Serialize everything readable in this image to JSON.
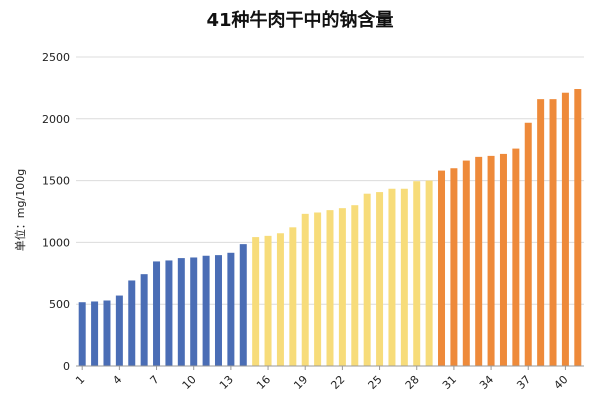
{
  "chart_data": {
    "type": "bar",
    "title": "41种牛肉干中的钠含量",
    "xlabel": "",
    "ylabel": "单位：mg/100g",
    "ylim": [
      0,
      2500
    ],
    "yticks": [
      0,
      500,
      1000,
      1500,
      2000,
      2500
    ],
    "xticks": [
      1,
      4,
      7,
      10,
      13,
      16,
      19,
      22,
      25,
      28,
      31,
      34,
      37,
      40
    ],
    "grid": "horizontal",
    "categories": [
      1,
      2,
      3,
      4,
      5,
      6,
      7,
      8,
      9,
      10,
      11,
      12,
      13,
      14,
      15,
      16,
      17,
      18,
      19,
      20,
      21,
      22,
      23,
      24,
      25,
      26,
      27,
      28,
      29,
      30,
      31,
      32,
      33,
      34,
      35,
      36,
      37,
      38,
      39,
      40,
      41
    ],
    "values": [
      516,
      522,
      530,
      570,
      692,
      743,
      846,
      854,
      873,
      878,
      892,
      897,
      916,
      986,
      1043,
      1053,
      1074,
      1122,
      1231,
      1242,
      1261,
      1277,
      1301,
      1394,
      1407,
      1434,
      1434,
      1495,
      1500,
      1581,
      1600,
      1662,
      1692,
      1700,
      1716,
      1759,
      1968,
      2159,
      2159,
      2211,
      2241
    ],
    "color_groups": [
      {
        "from": 1,
        "to": 14,
        "color": "#4a6db5"
      },
      {
        "from": 15,
        "to": 29,
        "color": "#f7dc7a"
      },
      {
        "from": 30,
        "to": 41,
        "color": "#ee8a3a"
      }
    ]
  }
}
